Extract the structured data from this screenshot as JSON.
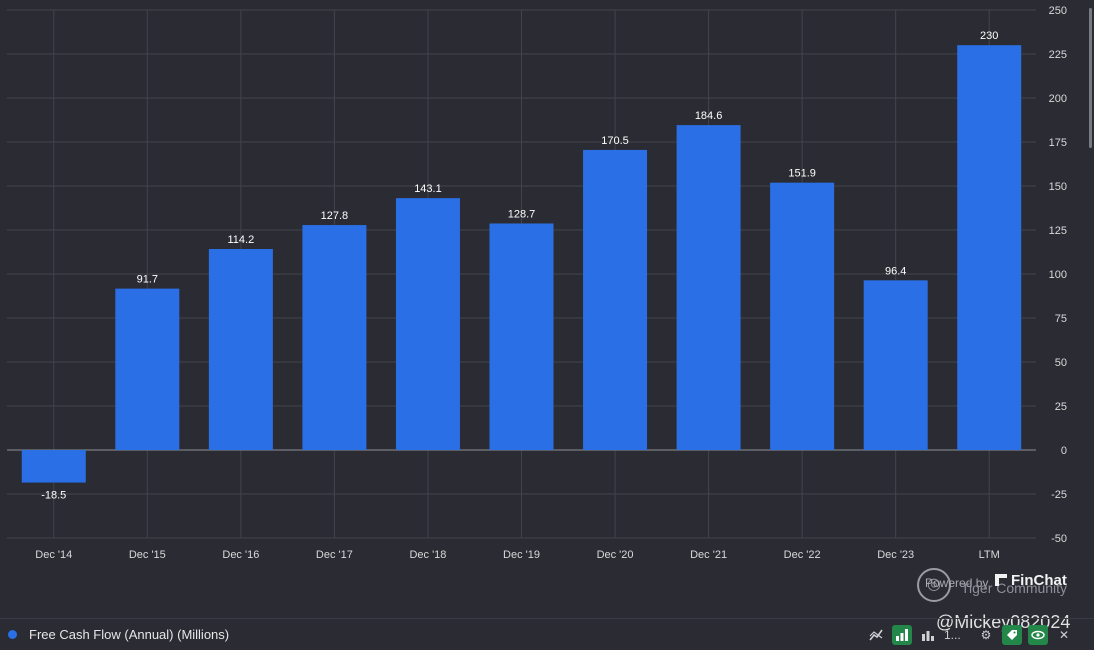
{
  "chart_data": {
    "type": "bar",
    "categories": [
      "Dec '14",
      "Dec '15",
      "Dec '16",
      "Dec '17",
      "Dec '18",
      "Dec '19",
      "Dec '20",
      "Dec '21",
      "Dec '22",
      "Dec '23",
      "LTM"
    ],
    "values": [
      -18.5,
      91.7,
      114.2,
      127.8,
      143.1,
      128.7,
      170.5,
      184.6,
      151.9,
      96.4,
      230
    ],
    "value_labels": [
      "-18.5",
      "91.7",
      "114.2",
      "127.8",
      "143.1",
      "128.7",
      "170.5",
      "184.6",
      "151.9",
      "96.4",
      "230"
    ],
    "y_ticks": [
      250,
      225,
      200,
      175,
      150,
      125,
      100,
      75,
      50,
      25,
      0,
      -25,
      -50
    ],
    "ylim": [
      -50,
      250
    ],
    "y_axis_side": "right",
    "grid": true,
    "bar_color": "#2a6fe6",
    "series_name": "Free Cash Flow (Annual) (Millions)",
    "legend_position": "bottom-left"
  },
  "legend": {
    "label": "Free Cash Flow (Annual) (Millions)",
    "color": "#2a6fe6"
  },
  "watermark": {
    "powered_by": "Powered by",
    "community": "Tiger Community",
    "brand": "FinChat"
  },
  "user_handle": "@Mickey082024",
  "toolbar": {
    "truncated_label": "1..."
  }
}
